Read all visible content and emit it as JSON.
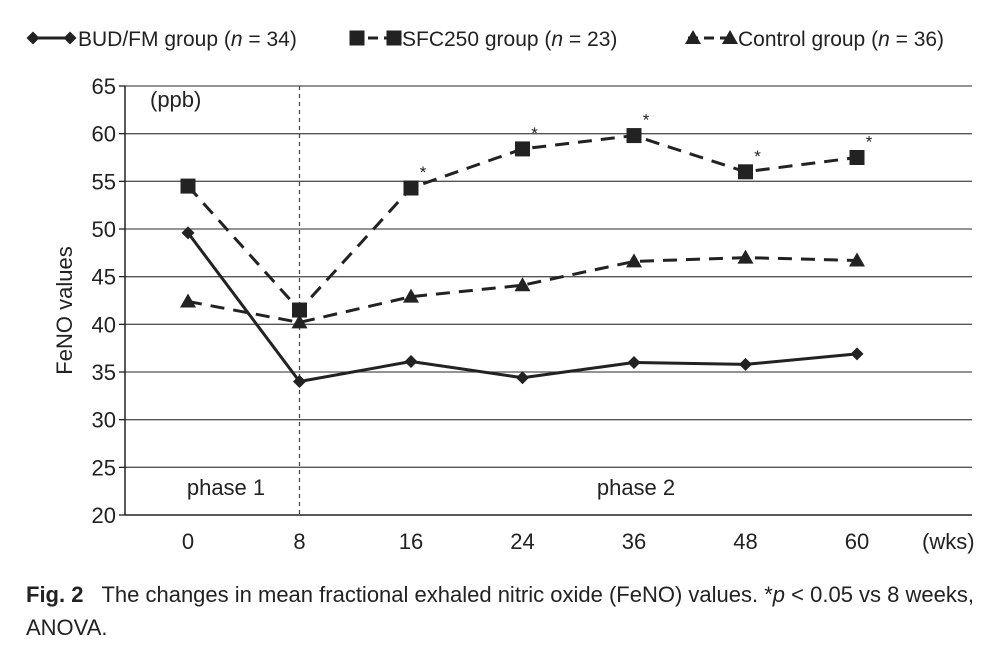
{
  "chart_data": {
    "type": "line",
    "x": [
      "0",
      "8",
      "16",
      "24",
      "36",
      "48",
      "60"
    ],
    "x_unit": "(wks)",
    "ylabel": "FeNO values",
    "y_unit": "(ppb)",
    "ylim": [
      20,
      65
    ],
    "yticks": [
      20,
      25,
      30,
      35,
      40,
      45,
      50,
      55,
      60,
      65
    ],
    "grid": "horizontal",
    "legend_position": "top",
    "series": [
      {
        "legend_main": "BUD/FM group (",
        "legend_n": "n",
        "legend_rest": " = 34)",
        "marker": "diamond",
        "style": "solid",
        "values": [
          49.6,
          34.0,
          36.1,
          34.4,
          36.0,
          35.8,
          36.9
        ],
        "significant": [
          false,
          false,
          false,
          false,
          false,
          false,
          false
        ]
      },
      {
        "legend_main": "SFC250 group (",
        "legend_n": "n",
        "legend_rest": " = 23)",
        "marker": "square",
        "style": "dashed",
        "values": [
          54.5,
          41.5,
          54.3,
          58.4,
          59.8,
          56.0,
          57.5
        ],
        "significant": [
          false,
          false,
          true,
          true,
          true,
          true,
          true
        ]
      },
      {
        "legend_main": "Control group (",
        "legend_n": "n",
        "legend_rest": " = 36)",
        "marker": "triangle",
        "style": "dashed",
        "values": [
          42.4,
          40.2,
          42.9,
          44.1,
          46.6,
          47.0,
          46.7
        ],
        "significant": [
          false,
          false,
          false,
          false,
          false,
          false,
          false
        ]
      }
    ],
    "annotations": {
      "significance_mark": "*",
      "phase1": "phase 1",
      "phase2": "phase 2",
      "divider_at": "8"
    }
  },
  "caption": {
    "fig_label": "Fig. 2",
    "text_a": "The changes in mean fractional exhaled nitric oxide (FeNO) values. *",
    "text_p": "p",
    "text_b": " < 0.05 vs 8 weeks, ANOVA."
  },
  "colors": {
    "line": "#222222",
    "grid": "#555555",
    "axis": "#222222"
  }
}
